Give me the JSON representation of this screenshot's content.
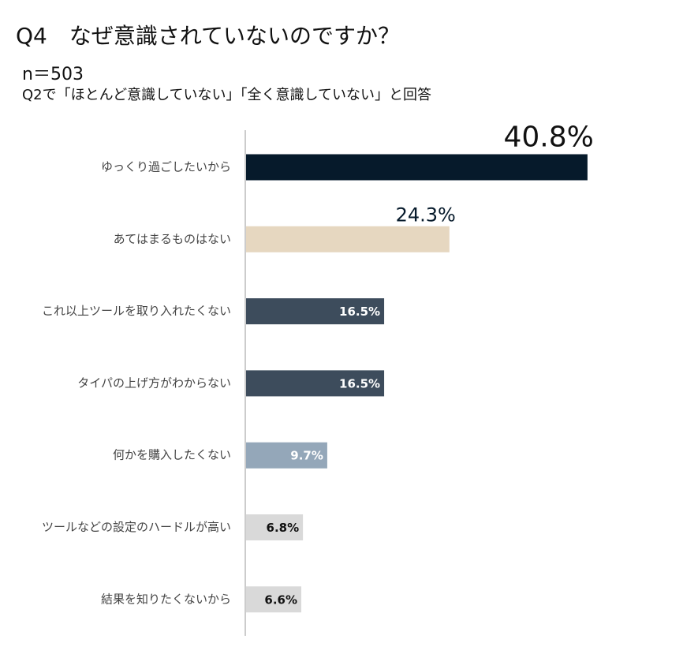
{
  "chart_data": {
    "type": "bar",
    "orientation": "horizontal",
    "title": "Q4　なぜ意識されていないのですか？",
    "subtitle": [
      "n＝503",
      "Q2で「ほとんど意識していない」「全く意識していない」と回答"
    ],
    "categories": [
      "ゆっくり過ごしたいから",
      "あてはまるものはない",
      "これ以上ツールを取り入れたくない",
      "タイパの上げ方がわからない",
      "何かを購入したくない",
      "ツールなどの設定のハードルが高い",
      "結果を知りたくないから"
    ],
    "values": [
      40.8,
      24.3,
      16.5,
      16.5,
      9.7,
      6.8,
      6.6
    ],
    "value_labels": [
      "40.8%",
      "24.3%",
      "16.5%",
      "16.5%",
      "9.7%",
      "6.8%",
      "6.6%"
    ],
    "colors": [
      "#061a2b",
      "#e6d7c0",
      "#3d4c5c",
      "#3d4c5c",
      "#94a7b9",
      "#d9d9d9",
      "#d9d9d9"
    ]
  }
}
